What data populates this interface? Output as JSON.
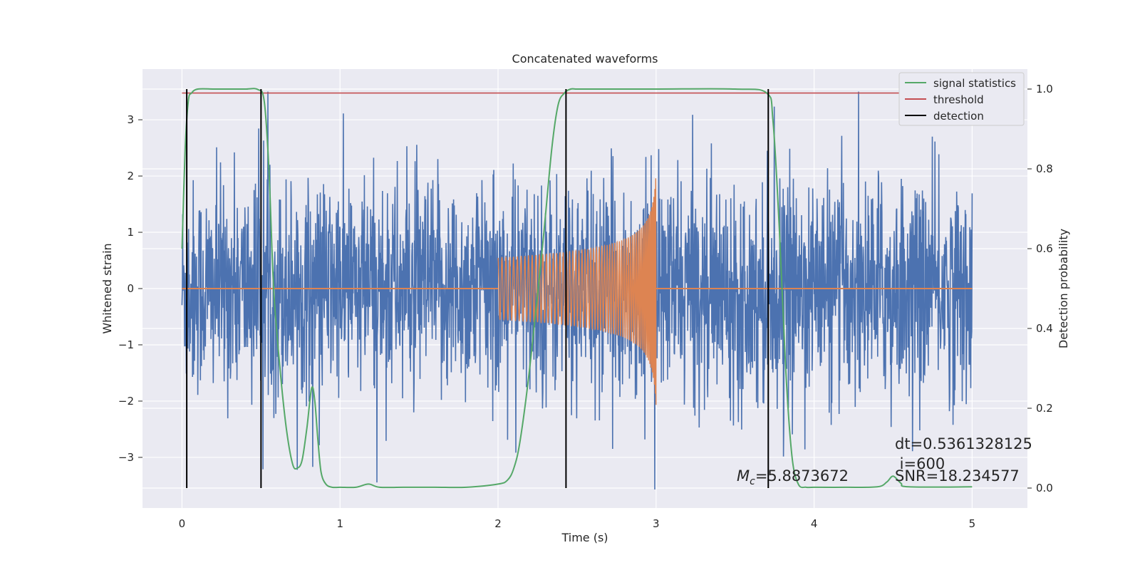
{
  "chart_data": {
    "type": "line",
    "title": "Concatenated waveforms",
    "xlabel": "Time (s)",
    "ylabel": "Whitened strain",
    "y2label": "Detection probability",
    "xlim": [
      -0.25,
      5.35
    ],
    "ylim": [
      -3.9,
      3.9
    ],
    "y2lim": [
      -0.05,
      1.05
    ],
    "x_ticks": [
      0,
      1,
      2,
      3,
      4,
      5
    ],
    "x_tick_labels": [
      "0",
      "1",
      "2",
      "3",
      "4",
      "5"
    ],
    "y_ticks": [
      -3,
      -2,
      -1,
      0,
      1,
      2,
      3
    ],
    "y_tick_labels": [
      "−3",
      "−2",
      "−1",
      "0",
      "1",
      "2",
      "3"
    ],
    "y2_ticks": [
      0.0,
      0.2,
      0.4,
      0.6,
      0.8,
      1.0
    ],
    "y2_tick_labels": [
      "0.0",
      "0.2",
      "0.4",
      "0.6",
      "0.8",
      "1.0"
    ],
    "grid": true,
    "legend_position": "top-right",
    "colors": {
      "strain": "#4c72b0",
      "template": "#dd8452",
      "signal_statistics": "#55a868",
      "threshold": "#c44e52",
      "detection": "#000000",
      "background": "#eaeaf2"
    },
    "legend": [
      {
        "label": "signal statistics",
        "color": "#55a868"
      },
      {
        "label": "threshold",
        "color": "#c44e52"
      },
      {
        "label": "detection",
        "color": "#000000"
      }
    ],
    "series": [
      {
        "name": "signal statistics",
        "axis": "right",
        "x": [
          0,
          0.02,
          0.04,
          0.06,
          0.1,
          0.2,
          0.3,
          0.4,
          0.48,
          0.52,
          0.55,
          0.58,
          0.62,
          0.66,
          0.7,
          0.73,
          0.76,
          0.79,
          0.82,
          0.84,
          0.86,
          0.88,
          0.91,
          0.95,
          1.0,
          1.1,
          1.18,
          1.25,
          1.4,
          1.6,
          1.8,
          2.0,
          2.06,
          2.1,
          2.14,
          2.2,
          2.28,
          2.34,
          2.38,
          2.42,
          2.46,
          2.5,
          2.6,
          3.0,
          3.5,
          3.7,
          3.74,
          3.78,
          3.82,
          3.86,
          3.9,
          3.95,
          4.0,
          4.2,
          4.4,
          4.46,
          4.5,
          4.55,
          4.6,
          5.0
        ],
        "y": [
          0.6,
          0.85,
          0.97,
          0.99,
          1.0,
          1.0,
          1.0,
          1.0,
          0.999,
          0.97,
          0.8,
          0.5,
          0.3,
          0.15,
          0.06,
          0.05,
          0.07,
          0.15,
          0.25,
          0.22,
          0.12,
          0.04,
          0.01,
          0.002,
          0.002,
          0.002,
          0.01,
          0.002,
          0.002,
          0.002,
          0.002,
          0.01,
          0.02,
          0.05,
          0.12,
          0.3,
          0.6,
          0.85,
          0.96,
          0.99,
          1.0,
          1.0,
          1.0,
          1.0,
          1.0,
          0.99,
          0.92,
          0.65,
          0.3,
          0.08,
          0.01,
          0.002,
          0.002,
          0.002,
          0.003,
          0.015,
          0.03,
          0.012,
          0.003,
          0.003
        ]
      },
      {
        "name": "threshold",
        "axis": "right",
        "x": [
          0,
          5
        ],
        "y": [
          0.99,
          0.99
        ]
      },
      {
        "name": "strain",
        "axis": "left",
        "x_range": [
          0,
          5
        ],
        "typical_abs_max": 2.5,
        "peak_max": 3.5,
        "peak_min": -3.6
      },
      {
        "name": "template",
        "axis": "left",
        "x_range": [
          2.0,
          3.0
        ],
        "start_amplitude": 0.55,
        "peak_amplitude_top": 2.1,
        "peak_amplitude_bottom": -2.1
      }
    ],
    "detections_x": [
      0.03,
      0.5,
      2.43,
      3.71
    ],
    "annotations": [
      {
        "name": "mc",
        "symbol": "M",
        "subscript": "c",
        "text": "=5.8873672",
        "x": 3.5,
        "y2": 0.02
      },
      {
        "name": "dt",
        "text": "dt=0.5361328125",
        "x": 4.5,
        "y2": 0.11
      },
      {
        "name": "index",
        "text": " i=600",
        "x": 4.5,
        "y2": 0.05
      },
      {
        "name": "snr",
        "text": "SNR=18.234577",
        "x": 4.5,
        "y2": 0.02
      }
    ]
  }
}
